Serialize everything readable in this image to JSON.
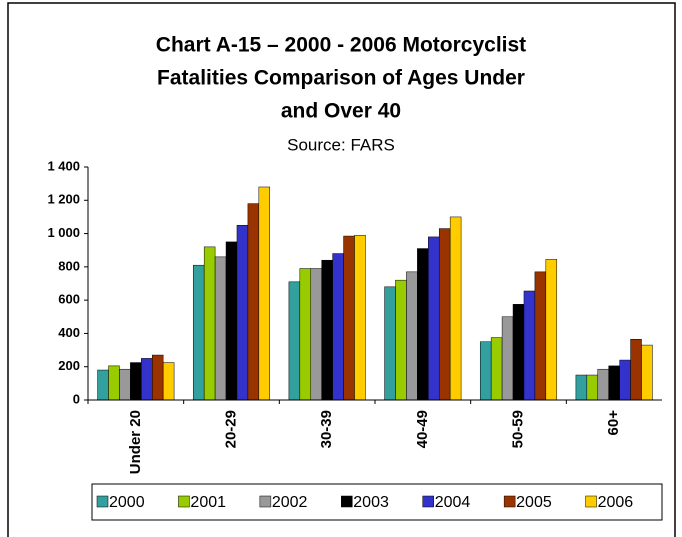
{
  "chart_data": {
    "type": "bar",
    "title": [
      "Chart A-15 – 2000 - 2006 Motorcyclist",
      "Fatalities Comparison of Ages Under",
      "and Over 40"
    ],
    "subtitle": "Source: FARS",
    "categories": [
      "Under 20",
      "20-29",
      "30-39",
      "40-49",
      "50-59",
      "60+"
    ],
    "series": [
      {
        "name": "2000",
        "color": "#33a0a0",
        "values": [
          180,
          810,
          710,
          680,
          350,
          150
        ]
      },
      {
        "name": "2001",
        "color": "#99cc00",
        "values": [
          205,
          920,
          790,
          720,
          375,
          150
        ]
      },
      {
        "name": "2002",
        "color": "#999999",
        "values": [
          185,
          860,
          790,
          770,
          500,
          185
        ]
      },
      {
        "name": "2003",
        "color": "#000000",
        "values": [
          225,
          950,
          840,
          910,
          575,
          205
        ]
      },
      {
        "name": "2004",
        "color": "#3333cc",
        "values": [
          250,
          1050,
          880,
          980,
          655,
          240
        ]
      },
      {
        "name": "2005",
        "color": "#993300",
        "values": [
          270,
          1180,
          985,
          1030,
          770,
          365
        ]
      },
      {
        "name": "2006",
        "color": "#ffcc00",
        "values": [
          225,
          1280,
          990,
          1100,
          845,
          330
        ]
      }
    ],
    "ylim": [
      0,
      1400
    ],
    "yticks": [
      0,
      200,
      400,
      600,
      800,
      {
        "value": 1000,
        "label": "1 000"
      },
      {
        "value": 1200,
        "label": "1 200"
      },
      {
        "value": 1400,
        "label": "1 400"
      }
    ],
    "grid": false,
    "legend": "bottom"
  }
}
